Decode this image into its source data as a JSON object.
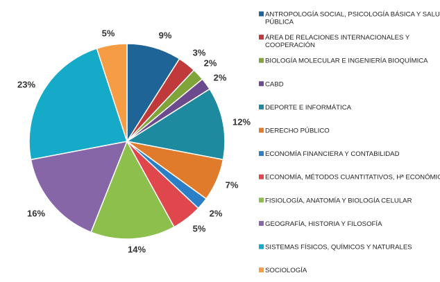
{
  "chart_data": {
    "type": "pie",
    "title": "",
    "legend_position": "right",
    "slices": [
      {
        "label": "ANTROPOLOGÍA SOCIAL, PSICOLOGÍA BÁSICA Y SALUD PÚBLICA",
        "value": 9,
        "display": "9%",
        "color": "#1f6497"
      },
      {
        "label": "ÁREA DE RELACIONES INTERNACIONALES Y COOPERACIÓN",
        "value": 3,
        "display": "3%",
        "color": "#c0393b"
      },
      {
        "label": "BIOLOGÍA MOLECULAR E INGENIERÍA BIOQUÍMICA",
        "value": 2,
        "display": "2%",
        "color": "#7ea43a"
      },
      {
        "label": "CABD",
        "value": 2,
        "display": "2%",
        "color": "#6b4b8e"
      },
      {
        "label": "DEPORTE E INFORMÁTICA",
        "value": 12,
        "display": "12%",
        "color": "#1d8aa0"
      },
      {
        "label": "DERECHO PÚBLICO",
        "value": 7,
        "display": "7%",
        "color": "#e07b2b"
      },
      {
        "label": "ECONOMÍA FINANCIERA Y CONTABILIDAD",
        "value": 2,
        "display": "2%",
        "color": "#2b7fc6"
      },
      {
        "label": "ECONOMÍA, MÉTODOS CUANTITATIVOS, Hª ECONÓMICA",
        "value": 5,
        "display": "5%",
        "color": "#e0474d"
      },
      {
        "label": "FISIOLOGÍA, ANATOMÍA Y BIOLOGÍA CELULAR",
        "value": 14,
        "display": "14%",
        "color": "#8cbf4b"
      },
      {
        "label": "GEOGRAFÍA, HISTORIA Y FILOSOFÍA",
        "value": 16,
        "display": "16%",
        "color": "#8766a8"
      },
      {
        "label": "SISTEMAS FÍSICOS, QUÍMICOS Y NATURALES",
        "value": 23,
        "display": "23%",
        "color": "#14aac8"
      },
      {
        "label": "SOCIOLOGÍA",
        "value": 5,
        "display": "5%",
        "color": "#f59c45"
      }
    ]
  }
}
